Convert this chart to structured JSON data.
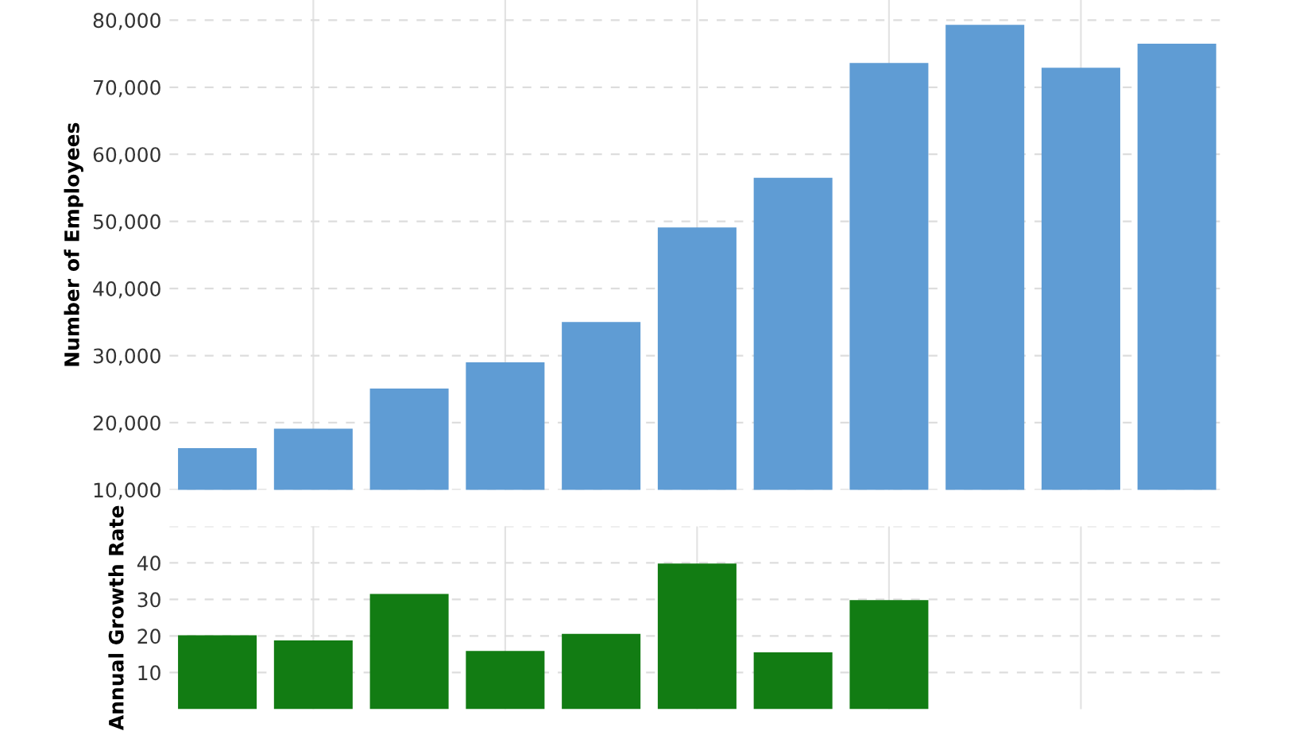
{
  "chart_data": [
    {
      "type": "bar",
      "ylabel": "Number of Employees",
      "categories": [
        null,
        null,
        null,
        null,
        null,
        null,
        null,
        null,
        null,
        null,
        null
      ],
      "series": [
        {
          "color": "#5f9cd4",
          "values": [
            16200,
            19100,
            25100,
            29000,
            35000,
            49100,
            56500,
            73600,
            79300,
            72900,
            76500
          ]
        }
      ],
      "ylim": [
        10000,
        83000
      ],
      "yticks": [
        {
          "value": 10000,
          "label": "10,000"
        },
        {
          "value": 20000,
          "label": "20,000"
        },
        {
          "value": 30000,
          "label": "30,000"
        },
        {
          "value": 40000,
          "label": "40,000"
        },
        {
          "value": 50000,
          "label": "50,000"
        },
        {
          "value": 60000,
          "label": "60,000"
        },
        {
          "value": 70000,
          "label": "70,000"
        },
        {
          "value": 80000,
          "label": "80,000"
        }
      ],
      "grid": true,
      "tick_labels": "y"
    },
    {
      "type": "bar",
      "ylabel": "Annual Growth Rate",
      "categories": [
        null,
        null,
        null,
        null,
        null,
        null,
        null,
        null,
        null,
        null,
        null
      ],
      "series": [
        {
          "color": "#127c13",
          "values": [
            20.2,
            18.8,
            31.5,
            15.9,
            20.6,
            39.8,
            15.5,
            29.8,
            null,
            null,
            null
          ]
        }
      ],
      "ylim": [
        0,
        50
      ],
      "yticks": [
        10,
        20,
        30,
        40,
        {
          "value": 50,
          "label": null
        }
      ],
      "grid": true,
      "tick_labels": "y"
    }
  ]
}
